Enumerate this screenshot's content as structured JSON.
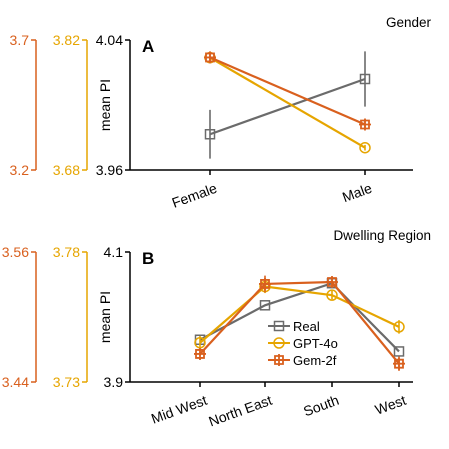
{
  "colors": {
    "real": "#6b6b6b",
    "gpt4o": "#e6a500",
    "gem2f": "#d9601e",
    "axis": "#000000"
  },
  "legend": {
    "items": [
      "Real",
      "GPT-4o",
      "Gem-2f"
    ]
  },
  "chart_data": [
    {
      "type": "line",
      "panel_letter": "A",
      "title": "Gender",
      "ylabel": "mean PI",
      "categories": [
        "Female",
        "Male"
      ],
      "ylim": [
        3.96,
        4.04
      ],
      "y_ticks": [
        "4.04",
        "3.96"
      ],
      "secondary_axes": [
        {
          "series": "Gem-2f",
          "color_key": "gem2f",
          "top": "3.7",
          "bottom": "3.2",
          "ylim": [
            3.2,
            3.7
          ]
        },
        {
          "series": "GPT-4o",
          "color_key": "gpt4o",
          "top": "3.82",
          "bottom": "3.68",
          "ylim": [
            3.68,
            3.82
          ]
        }
      ],
      "series": [
        {
          "name": "Real",
          "color_key": "real",
          "marker": "square",
          "axis": "primary",
          "values": [
            3.982,
            4.016
          ],
          "errors": [
            0.015,
            0.017
          ]
        },
        {
          "name": "GPT-4o",
          "color_key": "gpt4o",
          "marker": "circle",
          "axis": "secondary",
          "values": [
            3.801,
            3.704
          ],
          "errors": [
            0.002,
            0.003
          ]
        },
        {
          "name": "Gem-2f",
          "color_key": "gem2f",
          "marker": "plus",
          "axis": "secondary",
          "values": [
            3.633,
            3.375
          ],
          "errors": [
            0.012,
            0.02
          ]
        }
      ]
    },
    {
      "type": "line",
      "panel_letter": "B",
      "title": "Dwelling Region",
      "ylabel": "mean PI",
      "categories": [
        "Mid West",
        "North East",
        "South",
        "West"
      ],
      "ylim": [
        3.9,
        4.1
      ],
      "y_ticks": [
        "4.1",
        "3.9"
      ],
      "secondary_axes": [
        {
          "series": "Gem-2f",
          "color_key": "gem2f",
          "top": "3.56",
          "bottom": "3.44",
          "ylim": [
            3.44,
            3.56
          ]
        },
        {
          "series": "GPT-4o",
          "color_key": "gpt4o",
          "top": "3.78",
          "bottom": "3.73",
          "ylim": [
            3.73,
            3.78
          ]
        }
      ],
      "series": [
        {
          "name": "Real",
          "color_key": "real",
          "marker": "square",
          "axis": "primary",
          "values": [
            3.965,
            4.018,
            4.052,
            3.947
          ],
          "errors": [
            0.0,
            0.0,
            0.0,
            0.0
          ]
        },
        {
          "name": "GPT-4o",
          "color_key": "gpt4o",
          "marker": "circle",
          "axis": "secondary",
          "values": [
            3.7451,
            3.7667,
            3.7634,
            3.7512
          ],
          "errors": [
            0.0026,
            0.0025,
            0.0016,
            0.0026
          ]
        },
        {
          "name": "Gem-2f",
          "color_key": "gem2f",
          "marker": "plus",
          "axis": "secondary",
          "values": [
            3.4659,
            3.5305,
            3.5323,
            3.4569
          ],
          "errors": [
            0.0019,
            0.0077,
            0.0029,
            0.0066
          ]
        }
      ]
    }
  ]
}
